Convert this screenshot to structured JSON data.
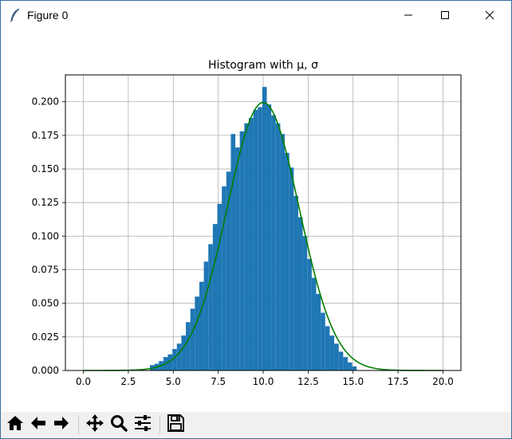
{
  "window": {
    "title": "Figure 0",
    "icons": {
      "app": "feather-icon",
      "minimize": "minimize-icon",
      "maximize": "maximize-icon",
      "close": "close-icon"
    }
  },
  "toolbar": {
    "buttons": [
      {
        "name": "home-button",
        "icon": "home-icon"
      },
      {
        "name": "back-button",
        "icon": "arrow-left-icon"
      },
      {
        "name": "forward-button",
        "icon": "arrow-right-icon"
      },
      {
        "name": "pan-button",
        "icon": "move-icon"
      },
      {
        "name": "zoom-button",
        "icon": "magnifier-icon"
      },
      {
        "name": "subplots-button",
        "icon": "sliders-icon"
      },
      {
        "name": "save-button",
        "icon": "floppy-disk-icon"
      }
    ]
  },
  "chart_data": {
    "type": "bar",
    "title": "Histogram with $\\mu, \\sigma$",
    "title_display": "Histogram with μ, σ",
    "xlabel": "",
    "ylabel": "",
    "xlim": [
      -1.0,
      21.0
    ],
    "ylim": [
      0,
      0.22
    ],
    "xticks": [
      "0.0",
      "2.5",
      "5.0",
      "7.5",
      "10.0",
      "12.5",
      "15.0",
      "17.5",
      "20.0"
    ],
    "yticks": [
      "0.000",
      "0.025",
      "0.050",
      "0.075",
      "0.100",
      "0.125",
      "0.150",
      "0.175",
      "0.200"
    ],
    "grid": true,
    "bar_color": "#1f77b4",
    "curve_color": "#008000",
    "histogram": {
      "bin_edges": [
        3.7,
        3.95,
        4.2,
        4.45,
        4.7,
        4.95,
        5.2,
        5.45,
        5.7,
        5.95,
        6.2,
        6.45,
        6.7,
        6.95,
        7.2,
        7.45,
        7.7,
        7.95,
        8.2,
        8.45,
        8.7,
        8.95,
        9.2,
        9.45,
        9.7,
        9.95,
        10.2,
        10.45,
        10.7,
        10.95,
        11.2,
        11.45,
        11.7,
        11.95,
        12.2,
        12.45,
        12.7,
        12.95,
        13.2,
        13.45,
        13.7,
        13.95,
        14.2,
        14.45,
        14.7,
        14.95,
        15.2
      ],
      "densities": [
        0.004,
        0.005,
        0.007,
        0.01,
        0.012,
        0.016,
        0.02,
        0.026,
        0.036,
        0.046,
        0.055,
        0.066,
        0.081,
        0.094,
        0.109,
        0.124,
        0.137,
        0.148,
        0.176,
        0.166,
        0.178,
        0.184,
        0.188,
        0.194,
        0.196,
        0.211,
        0.198,
        0.19,
        0.184,
        0.176,
        0.162,
        0.151,
        0.13,
        0.114,
        0.1,
        0.083,
        0.069,
        0.057,
        0.043,
        0.033,
        0.026,
        0.02,
        0.014,
        0.01,
        0.006,
        0.003
      ]
    },
    "curve": {
      "name": "normal pdf",
      "mu": 10,
      "sigma": 2,
      "x_range": [
        0,
        20
      ]
    }
  }
}
